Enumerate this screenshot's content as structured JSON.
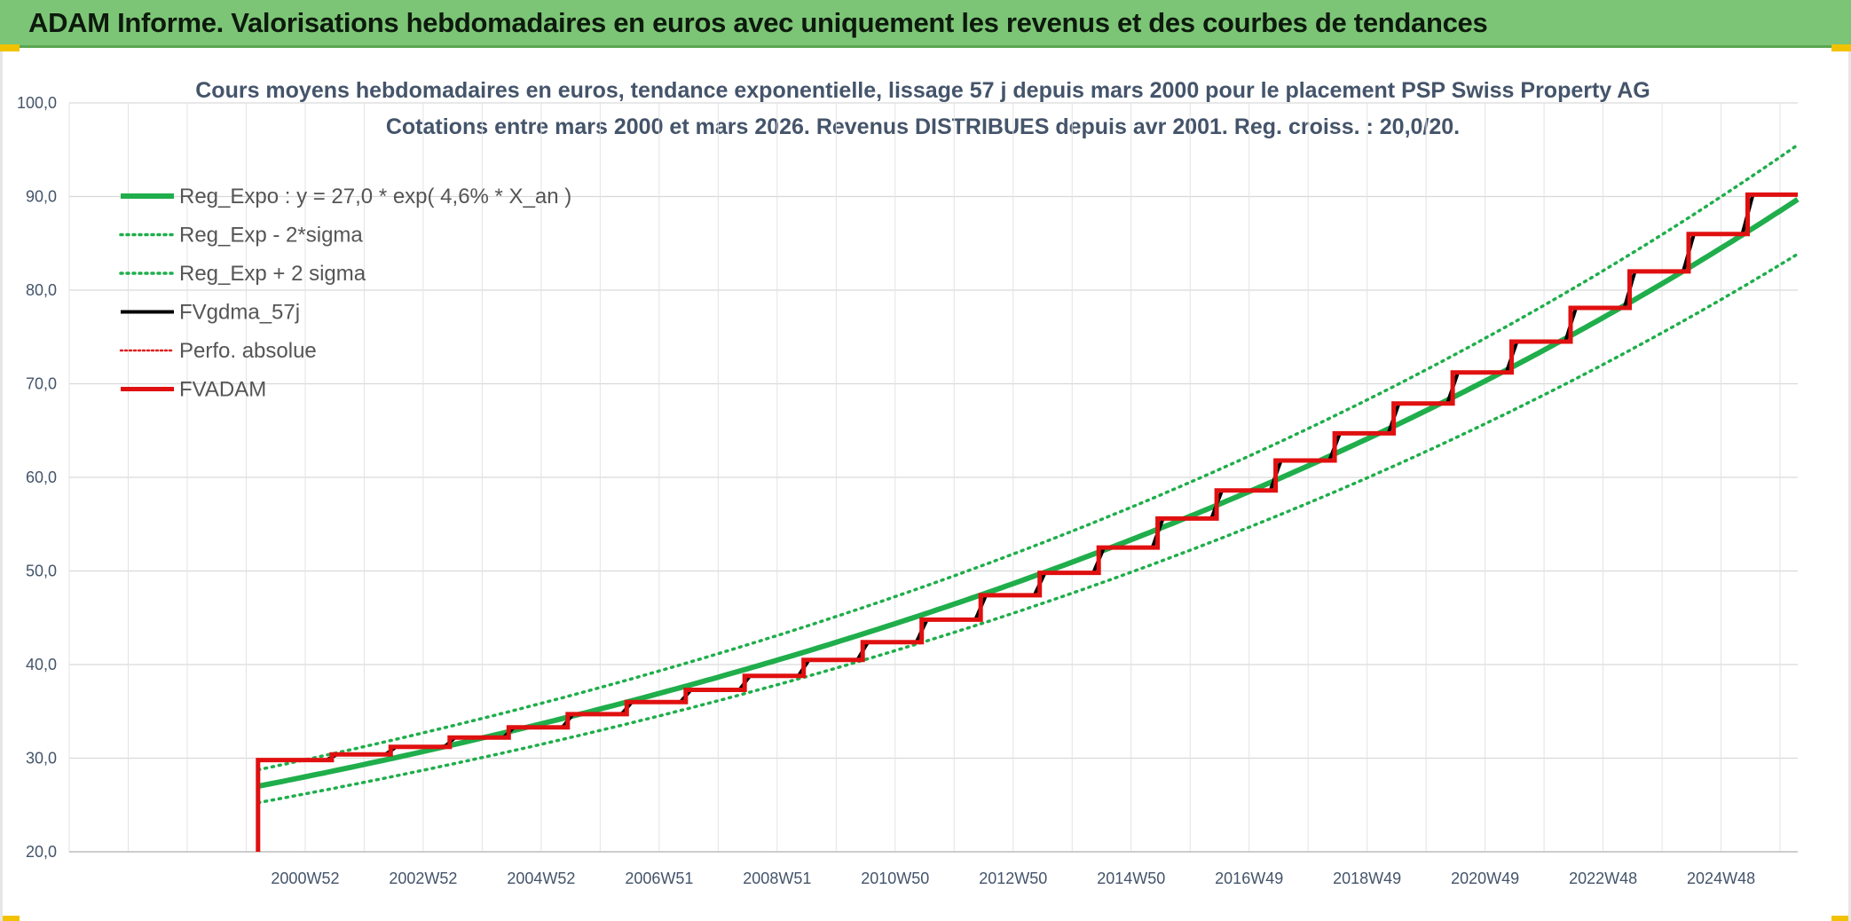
{
  "banner": {
    "title": "ADAM Informe. Valorisations hebdomadaires en euros avec uniquement les revenus et des courbes de tendances"
  },
  "chart_data": {
    "type": "line",
    "title": "Cours moyens hebdomadaires en euros, tendance exponentielle, lissage 57 j depuis mars 2000 pour le placement PSP Swiss Property AG",
    "subtitle": "Cotations entre mars 2000 et mars 2026. Revenus DISTRIBUES depuis avr 2001. Reg. croiss. : 20,0/20.",
    "xlabel": "",
    "ylabel": "",
    "ylim": [
      20,
      100
    ],
    "yticks": [
      "100,0",
      "90,0",
      "80,0",
      "70,0",
      "60,0",
      "50,0",
      "40,0",
      "30,0",
      "20,0"
    ],
    "ytick_values": [
      100,
      90,
      80,
      70,
      60,
      50,
      40,
      30,
      20
    ],
    "xlim": [
      1997.0,
      2026.3
    ],
    "xticks": [
      "2000W52",
      "2002W52",
      "2004W52",
      "2006W51",
      "2008W51",
      "2010W50",
      "2012W50",
      "2014W50",
      "2016W49",
      "2018W49",
      "2020W49",
      "2022W48",
      "2024W48"
    ],
    "xtick_values": [
      2001.0,
      2003.0,
      2005.0,
      2007.0,
      2009.0,
      2011.0,
      2013.0,
      2015.0,
      2017.0,
      2019.0,
      2021.0,
      2023.0,
      2025.0
    ],
    "grid": true,
    "legend_position": "top-left",
    "regression": {
      "a": 27.0,
      "rate": 0.046,
      "x0": 2000.2,
      "x1": 2026.3,
      "sigma_factor": 0.065
    },
    "steps": {
      "start_x": 2000.2,
      "start_y_low": 20,
      "start_y": 29.8,
      "x_end": 2026.3,
      "dates": [
        2001.45,
        2002.45,
        2003.45,
        2004.45,
        2005.45,
        2006.45,
        2007.45,
        2008.45,
        2009.45,
        2010.45,
        2011.45,
        2012.45,
        2013.45,
        2014.45,
        2015.45,
        2016.45,
        2017.45,
        2018.45,
        2019.45,
        2020.45,
        2021.45,
        2022.45,
        2023.45,
        2024.45,
        2025.45
      ],
      "levels": [
        30.4,
        31.2,
        32.2,
        33.3,
        34.7,
        36.0,
        37.3,
        38.8,
        40.5,
        42.4,
        44.8,
        47.4,
        49.8,
        52.5,
        55.6,
        58.6,
        61.8,
        64.7,
        67.9,
        71.2,
        74.5,
        78.1,
        82.0,
        86.0,
        90.2
      ]
    },
    "series": [
      {
        "name": "Reg_Expo : y = 27,0 * exp( 4,6% *  X_an )",
        "color": "#1fae4b",
        "style": "solid"
      },
      {
        "name": "Reg_Exp - 2*sigma",
        "color": "#1fae4b",
        "style": "dotted"
      },
      {
        "name": "Reg_Exp + 2 sigma",
        "color": "#1fae4b",
        "style": "dotted"
      },
      {
        "name": "FVgdma_57j",
        "color": "#000000",
        "style": "solid"
      },
      {
        "name": "Perfo. absolue",
        "color": "#e02020",
        "style": "dotted"
      },
      {
        "name": "FVADAM",
        "color": "#e01010",
        "style": "solid"
      }
    ]
  }
}
